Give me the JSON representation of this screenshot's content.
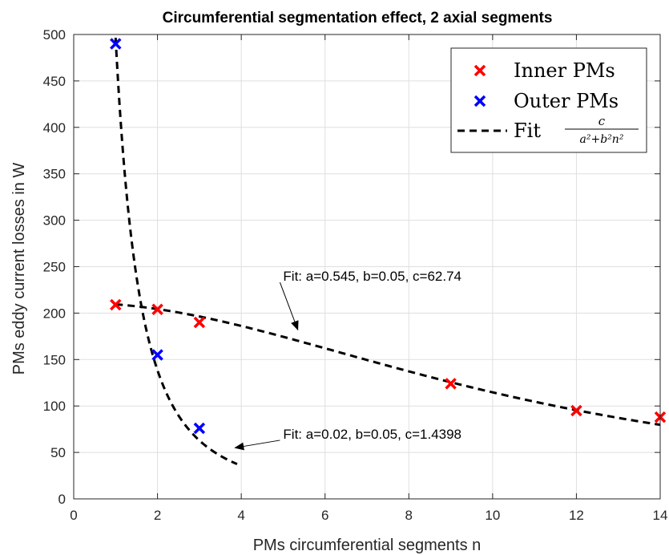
{
  "chart_data": {
    "type": "scatter",
    "title": "Circumferential segmentation effect, 2 axial segments",
    "xlabel": "PMs circumferential segments n",
    "ylabel": "PMs eddy current losses in W",
    "xlim": [
      0,
      14
    ],
    "ylim": [
      0,
      500
    ],
    "xticks": [
      0,
      2,
      4,
      6,
      8,
      10,
      12,
      14
    ],
    "yticks": [
      0,
      50,
      100,
      150,
      200,
      250,
      300,
      350,
      400,
      450,
      500
    ],
    "grid": true,
    "legend_position": "top-right",
    "series": [
      {
        "name": "Inner PMs",
        "marker": "x",
        "color": "#ff0000",
        "x": [
          1,
          2,
          3,
          9,
          12,
          14
        ],
        "y": [
          209,
          204,
          190,
          124,
          95,
          88
        ]
      },
      {
        "name": "Outer PMs",
        "marker": "x",
        "color": "#0000ff",
        "x": [
          1,
          2,
          3
        ],
        "y": [
          490,
          155,
          76
        ]
      }
    ],
    "fits": [
      {
        "style": "dashed",
        "color": "#000000",
        "a": 0.545,
        "b": 0.05,
        "c": 62.74,
        "x_range": [
          1,
          14
        ]
      },
      {
        "style": "dashed",
        "color": "#000000",
        "a": 0.02,
        "b": 0.05,
        "c": 1.4398,
        "x_range": [
          1,
          3.9
        ]
      }
    ],
    "legend_fit": {
      "prefix": "Fit",
      "numerator": "c",
      "denominator": "a²+b²n²"
    },
    "annotations": [
      {
        "text": "Fit: a=0.545, b=0.05, c=62.74",
        "text_x": 5.0,
        "text_y": 240,
        "arrow_to_x": 5.35,
        "arrow_to_y": 182
      },
      {
        "text": "Fit: a=0.02, b=0.05, c=1.4398",
        "text_x": 5.0,
        "text_y": 70,
        "arrow_to_x": 3.85,
        "arrow_to_y": 55
      }
    ]
  }
}
